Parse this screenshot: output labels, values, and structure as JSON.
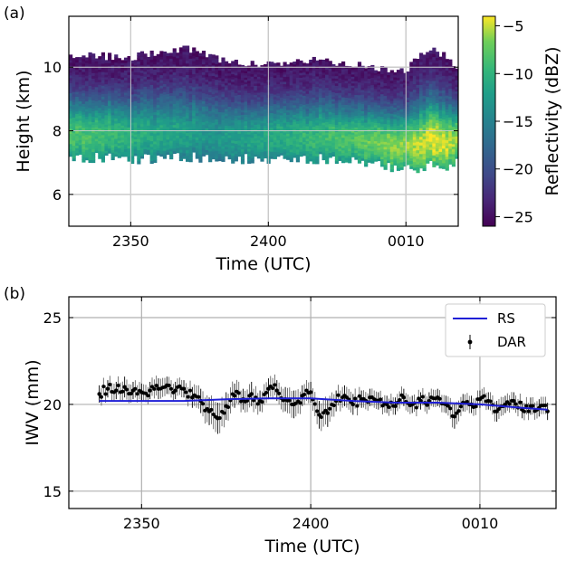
{
  "panel_a": {
    "label": "(a)",
    "chart_data": {
      "type": "heatmap",
      "xlabel": "Time (UTC)",
      "ylabel": "Height (km)",
      "colorbar_label": "Reflectivity (dBZ)",
      "x_tick_labels": [
        "2350",
        "2400",
        "0010"
      ],
      "x_tick_values_min": [
        0,
        10,
        20
      ],
      "xlim_min": [
        -4.5,
        23.8
      ],
      "y_ticks": [
        6,
        8,
        10
      ],
      "ylim": [
        5,
        11.6
      ],
      "colorbar_ticks": [
        -5,
        -10,
        -15,
        -20,
        -25
      ],
      "colorbar_range": [
        -26,
        -4
      ],
      "colormap": "viridis",
      "grid": true,
      "layer_profile": {
        "time_min": [
          -4.5,
          -2,
          0,
          2,
          4,
          6,
          8,
          10,
          12,
          14,
          16,
          18,
          19,
          20,
          21,
          22,
          23,
          23.8
        ],
        "top_km": [
          10.4,
          10.35,
          10.3,
          10.5,
          10.6,
          10.3,
          10.15,
          10.1,
          10.2,
          10.2,
          10.1,
          10.0,
          9.8,
          9.9,
          10.4,
          10.6,
          10.3,
          10.0
        ],
        "base_km": [
          7.4,
          7.3,
          7.3,
          7.3,
          7.35,
          7.35,
          7.3,
          7.3,
          7.3,
          7.3,
          7.2,
          7.2,
          7.0,
          7.1,
          7.0,
          7.2,
          7.1,
          7.2
        ],
        "peak_dbz": [
          -8,
          -9,
          -10,
          -11,
          -12,
          -13,
          -12,
          -11,
          -10,
          -9,
          -8,
          -7,
          -6,
          -6,
          -5,
          -4,
          -5,
          -6
        ]
      }
    }
  },
  "panel_b": {
    "label": "(b)",
    "chart_data": {
      "type": "line",
      "xlabel": "Time (UTC)",
      "ylabel": "IWV (mm)",
      "x_tick_labels": [
        "2350",
        "2400",
        "0010"
      ],
      "x_tick_values_min": [
        0,
        10,
        20
      ],
      "xlim_min": [
        -4.3,
        24.5
      ],
      "y_ticks": [
        15,
        20,
        25
      ],
      "ylim": [
        14,
        26.2
      ],
      "grid": true,
      "legend_position": "top-right",
      "series": [
        {
          "name": "RS",
          "kind": "line",
          "color": "#1f1fd6",
          "x": [
            -2.5,
            0,
            2.5,
            5,
            7.5,
            10,
            12.5,
            15,
            17.5,
            20,
            22.5,
            24
          ],
          "y": [
            20.2,
            20.2,
            20.2,
            20.3,
            20.35,
            20.35,
            20.2,
            20.1,
            20.1,
            20.0,
            19.8,
            19.7
          ]
        },
        {
          "name": "DAR",
          "kind": "scatter_errorbar",
          "color": "#000000",
          "x": [
            -2.5,
            -2,
            -1.5,
            -1,
            -0.5,
            0,
            0.5,
            1,
            1.5,
            2,
            2.5,
            3,
            3.5,
            4,
            4.5,
            5,
            5.5,
            6,
            6.5,
            7,
            7.5,
            8,
            8.5,
            9,
            9.5,
            10,
            10.5,
            11,
            11.5,
            12,
            12.5,
            13,
            13.5,
            14,
            14.5,
            15,
            15.5,
            16,
            16.5,
            17,
            17.5,
            18,
            18.5,
            19,
            19.5,
            20,
            20.5,
            21,
            21.5,
            22,
            22.5,
            23,
            23.5,
            24
          ],
          "y": [
            20.6,
            20.9,
            20.8,
            21.0,
            20.8,
            20.7,
            20.8,
            20.9,
            21.1,
            20.8,
            20.9,
            20.4,
            20.2,
            19.6,
            19.2,
            19.9,
            20.5,
            20.3,
            20.6,
            20.2,
            20.9,
            20.8,
            20.3,
            20.0,
            20.5,
            20.7,
            19.4,
            19.5,
            20.2,
            20.5,
            20.0,
            20.3,
            20.4,
            20.2,
            20.0,
            19.9,
            20.4,
            20.0,
            20.2,
            20.2,
            20.4,
            20.0,
            19.3,
            20.1,
            20.0,
            20.3,
            20.2,
            19.6,
            20.0,
            20.2,
            19.7,
            19.9,
            19.8,
            19.6
          ],
          "err": [
            0.5,
            0.5,
            0.5,
            0.6,
            0.5,
            0.5,
            0.5,
            0.6,
            0.5,
            0.5,
            0.5,
            0.6,
            0.7,
            0.8,
            0.9,
            0.8,
            0.7,
            0.6,
            0.7,
            0.6,
            0.6,
            0.6,
            0.7,
            0.8,
            0.6,
            0.6,
            0.8,
            0.8,
            0.6,
            0.6,
            0.6,
            0.5,
            0.5,
            0.5,
            0.5,
            0.5,
            0.5,
            0.5,
            0.5,
            0.5,
            0.5,
            0.5,
            0.7,
            0.5,
            0.5,
            0.5,
            0.5,
            0.6,
            0.5,
            0.5,
            0.5,
            0.5,
            0.5,
            0.5
          ]
        }
      ]
    }
  }
}
